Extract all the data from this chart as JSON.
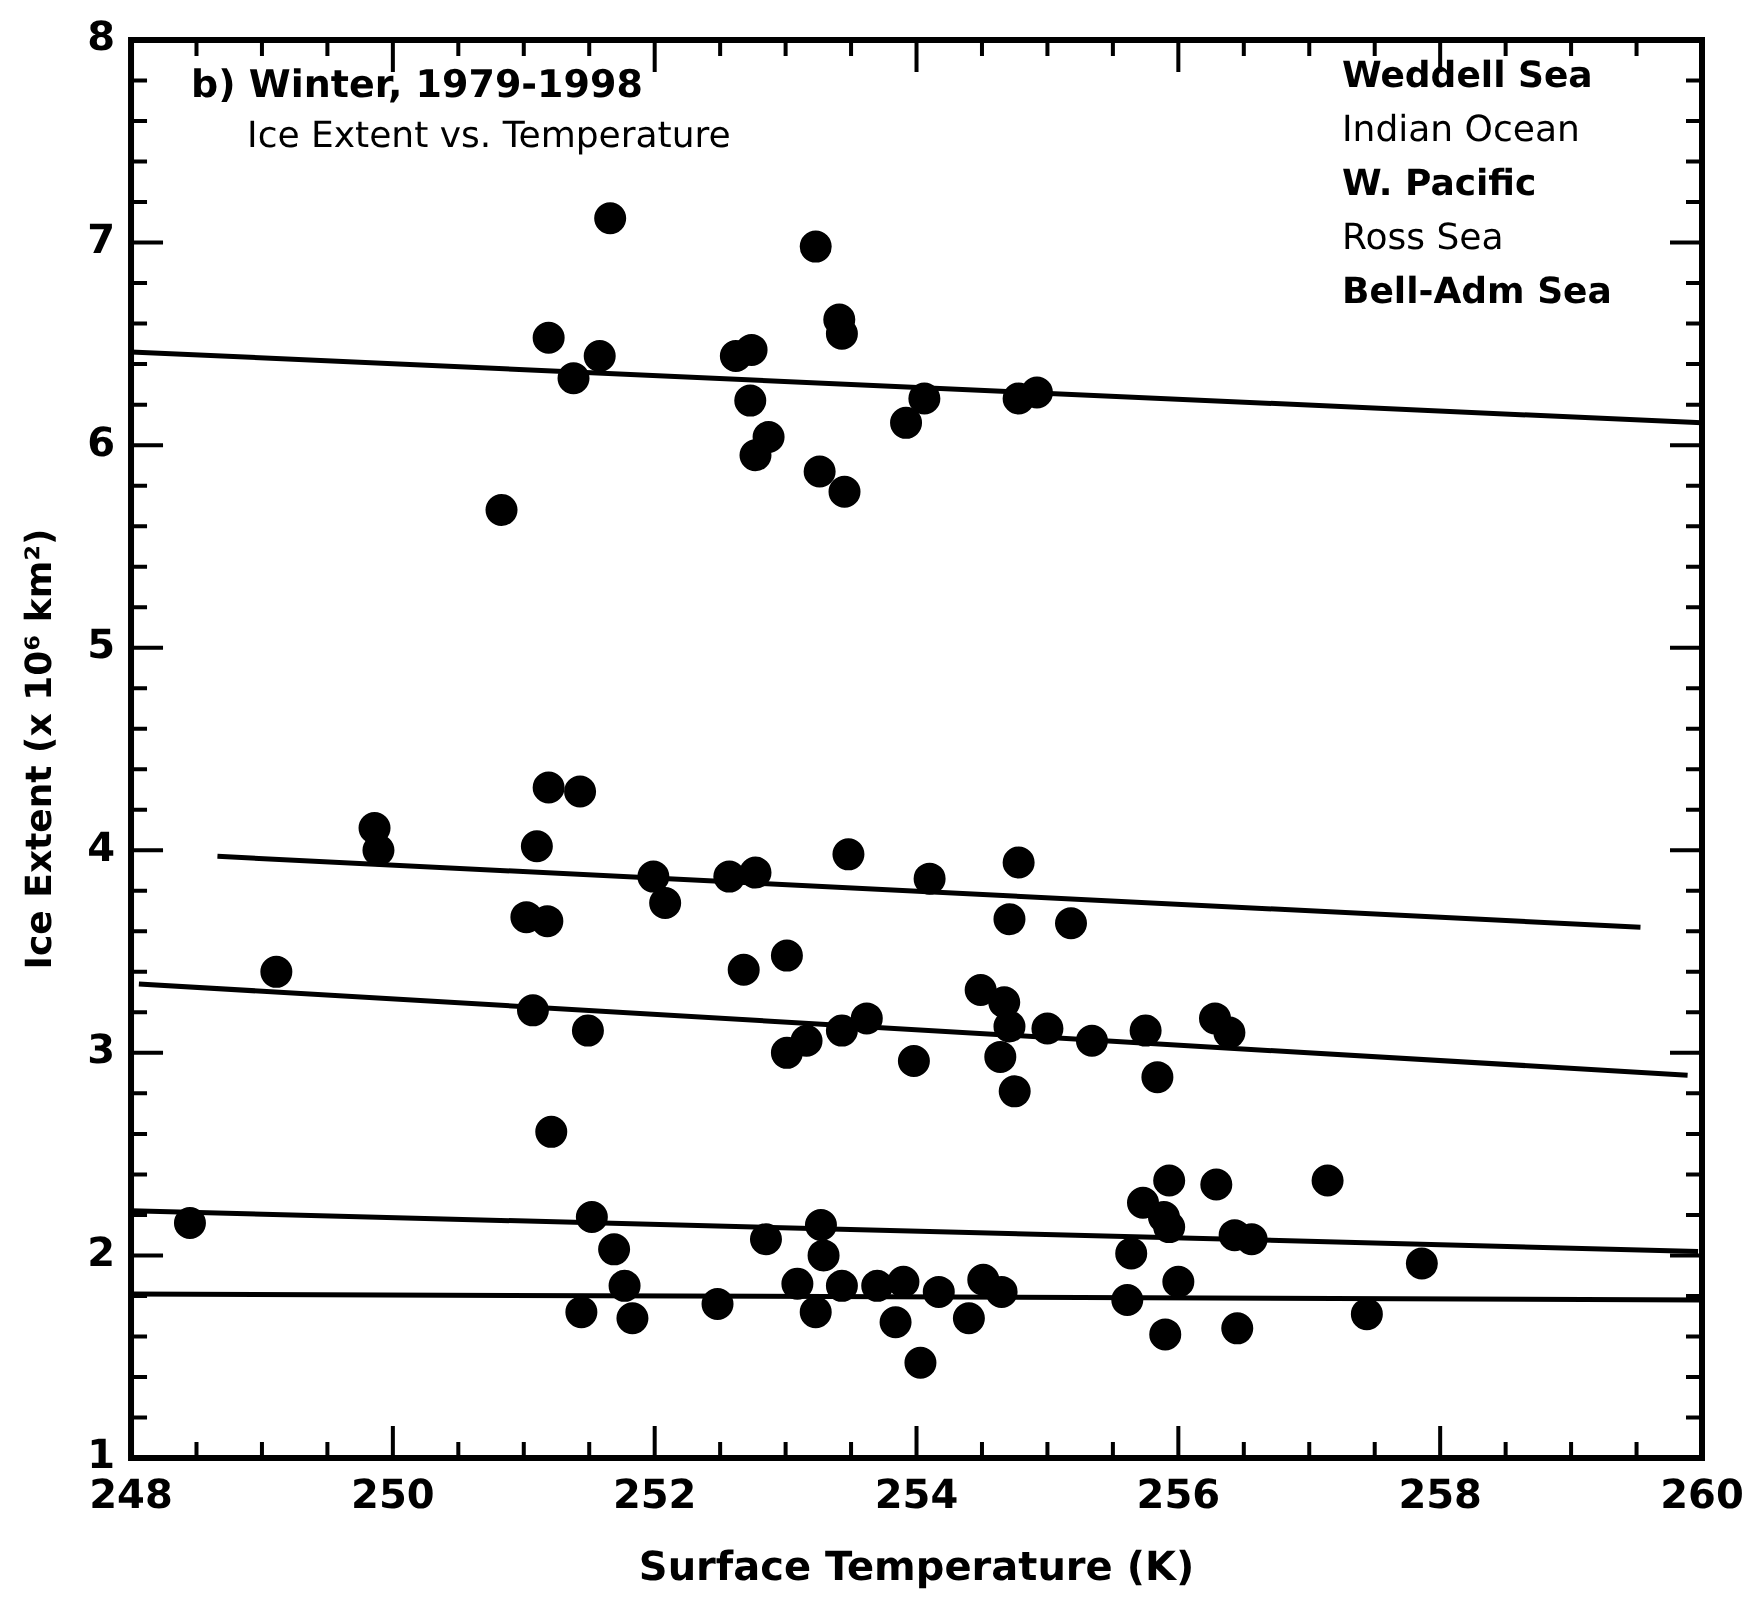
{
  "chart_data": {
    "type": "scatter",
    "title": "b) Winter, 1979-1998",
    "subtitle": "Ice Extent vs. Temperature",
    "xlabel": "Surface Temperature (K)",
    "ylabel": "Ice Extent (x 10⁶ km²)",
    "annotations": [
      "Weddell Sea",
      "Indian Ocean",
      "W. Pacific",
      "Ross Sea",
      "Bell-Adm Sea"
    ],
    "xlim": [
      248,
      260
    ],
    "ylim": [
      1,
      8
    ],
    "xticks": [
      248,
      {
        "value": 248.5,
        "label": null
      },
      {
        "value": 249,
        "label": null
      },
      {
        "value": 249.5,
        "label": null
      },
      250,
      {
        "value": 250.5,
        "label": null
      },
      {
        "value": 251,
        "label": null
      },
      {
        "value": 251.5,
        "label": null
      },
      252,
      {
        "value": 252.5,
        "label": null
      },
      {
        "value": 253,
        "label": null
      },
      {
        "value": 253.5,
        "label": null
      },
      254,
      {
        "value": 254.5,
        "label": null
      },
      {
        "value": 255,
        "label": null
      },
      {
        "value": 255.5,
        "label": null
      },
      256,
      {
        "value": 256.5,
        "label": null
      },
      {
        "value": 257,
        "label": null
      },
      {
        "value": 257.5,
        "label": null
      },
      258,
      {
        "value": 258.5,
        "label": null
      },
      {
        "value": 259,
        "label": null
      },
      {
        "value": 259.5,
        "label": null
      },
      260
    ],
    "yticks": [
      1,
      {
        "value": 1.2,
        "label": null
      },
      {
        "value": 1.4,
        "label": null
      },
      {
        "value": 1.6,
        "label": null
      },
      {
        "value": 1.8,
        "label": null
      },
      2,
      {
        "value": 2.2,
        "label": null
      },
      {
        "value": 2.4,
        "label": null
      },
      {
        "value": 2.6,
        "label": null
      },
      {
        "value": 2.8,
        "label": null
      },
      3,
      {
        "value": 3.2,
        "label": null
      },
      {
        "value": 3.4,
        "label": null
      },
      {
        "value": 3.6,
        "label": null
      },
      {
        "value": 3.8,
        "label": null
      },
      4,
      {
        "value": 4.2,
        "label": null
      },
      {
        "value": 4.4,
        "label": null
      },
      {
        "value": 4.6,
        "label": null
      },
      {
        "value": 4.8,
        "label": null
      },
      5,
      {
        "value": 5.2,
        "label": null
      },
      {
        "value": 5.4,
        "label": null
      },
      {
        "value": 5.6,
        "label": null
      },
      {
        "value": 5.8,
        "label": null
      },
      6,
      {
        "value": 6.2,
        "label": null
      },
      {
        "value": 6.4,
        "label": null
      },
      {
        "value": 6.6,
        "label": null
      },
      {
        "value": 6.8,
        "label": null
      },
      7,
      {
        "value": 7.2,
        "label": null
      },
      {
        "value": 7.4,
        "label": null
      },
      {
        "value": 7.6,
        "label": null
      },
      {
        "value": 7.8,
        "label": null
      },
      8
    ],
    "grid": false,
    "legend": false,
    "series": [
      {
        "marker": "circle",
        "color": "#000000",
        "x": [
          251.66,
          253.23,
          251.19,
          251.38,
          251.58,
          250.83,
          252.62,
          252.74,
          252.73,
          252.77,
          252.87,
          253.26,
          253.45,
          253.41,
          253.43,
          253.92,
          254.06,
          254.78,
          254.92,
          251.19,
          251.43,
          249.86,
          249.89,
          251.1,
          251.99,
          252.08,
          252.57,
          252.77,
          253.48,
          254.1,
          251.02,
          251.18,
          252.68,
          253.01,
          249.11,
          251.07,
          251.49,
          253.01,
          253.16,
          253.43,
          253.62,
          253.98,
          251.21,
          254.78,
          254.71,
          255.18,
          254.49,
          254.67,
          254.71,
          255.0,
          255.34,
          255.75,
          256.28,
          256.39,
          254.64,
          254.75,
          255.84,
          248.45,
          251.52,
          251.69,
          251.77,
          251.44,
          251.83,
          252.48,
          252.85,
          253.27,
          253.29,
          253.09,
          253.23,
          253.43,
          253.7,
          253.9,
          253.84,
          254.03,
          254.17,
          254.4,
          254.51,
          254.65,
          255.93,
          255.73,
          255.89,
          255.93,
          255.64,
          256.29,
          256.43,
          256.56,
          257.14,
          257.86,
          255.61,
          256.0,
          255.9,
          256.45,
          257.44
        ],
        "values": [
          7.12,
          6.98,
          6.53,
          6.33,
          6.44,
          5.68,
          6.44,
          6.47,
          6.22,
          5.95,
          6.04,
          5.87,
          5.77,
          6.62,
          6.55,
          6.11,
          6.23,
          6.23,
          6.26,
          4.31,
          4.29,
          4.11,
          4.0,
          4.02,
          3.87,
          3.74,
          3.87,
          3.89,
          3.98,
          3.86,
          3.67,
          3.65,
          3.41,
          3.48,
          3.4,
          3.21,
          3.11,
          3.0,
          3.06,
          3.11,
          3.17,
          2.96,
          2.61,
          3.94,
          3.66,
          3.64,
          3.31,
          3.25,
          3.13,
          3.12,
          3.06,
          3.11,
          3.17,
          3.1,
          2.98,
          2.81,
          2.88,
          2.16,
          2.19,
          2.03,
          1.85,
          1.72,
          1.69,
          1.76,
          2.08,
          2.15,
          2.0,
          1.86,
          1.72,
          1.85,
          1.85,
          1.87,
          1.67,
          1.47,
          1.82,
          1.69,
          1.88,
          1.82,
          2.37,
          2.26,
          2.19,
          2.14,
          2.01,
          2.35,
          2.1,
          2.08,
          2.37,
          1.96,
          1.78,
          1.87,
          1.61,
          1.64,
          1.71
        ]
      },
      {
        "type": "line",
        "color": "#000000",
        "x": [
          248,
          260
        ],
        "values": [
          6.46,
          6.11
        ]
      },
      {
        "type": "line",
        "color": "#000000",
        "x": [
          248.66,
          259.53
        ],
        "values": [
          3.97,
          3.62
        ]
      },
      {
        "type": "line",
        "color": "#000000",
        "x": [
          248.06,
          259.89
        ],
        "values": [
          3.34,
          2.89
        ]
      },
      {
        "type": "line",
        "color": "#000000",
        "x": [
          248,
          259.97
        ],
        "values": [
          2.22,
          2.02
        ]
      },
      {
        "type": "line",
        "color": "#000000",
        "x": [
          248,
          260
        ],
        "values": [
          1.81,
          1.78
        ]
      }
    ]
  }
}
